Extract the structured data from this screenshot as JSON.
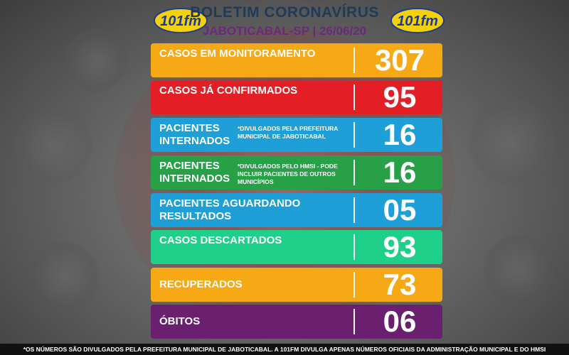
{
  "header": {
    "title": "BOLETIM CORONAVÍRUS",
    "subtitle": "JABOTICABAL-SP | 26/06/20",
    "logo_icon": "101fm-logo-icon"
  },
  "rows": [
    {
      "label": "CASOS EM MONITORAMENTO",
      "note": "",
      "value": "307",
      "color": "#f6a914"
    },
    {
      "label": "CASOS JÁ CONFIRMADOS",
      "note": "",
      "value": "95",
      "color": "#e31e24"
    },
    {
      "label": "PACIENTES INTERNADOS",
      "note": "*DIVULGADOS PELA PREFEITURA MUNICIPAL DE JABOTICABAL",
      "value": "16",
      "color": "#1e9fd8"
    },
    {
      "label": "PACIENTES INTERNADOS",
      "note": "*DIVULGADOS PELO HMSI - PODE INCLUIR PACIENTES DE OUTROS MUNICÍPIOS",
      "value": "16",
      "color": "#27a047"
    },
    {
      "label": "PACIENTES AGUARDANDO RESULTADOS",
      "note": "",
      "value": "05",
      "color": "#1e9fd8"
    },
    {
      "label": "CASOS DESCARTADOS",
      "note": "",
      "value": "93",
      "color": "#1fd08a"
    },
    {
      "label": "RECUPERADOS",
      "note": "",
      "value": "73",
      "color": "#f6a914"
    },
    {
      "label": "ÓBITOS",
      "note": "",
      "value": "06",
      "color": "#6b1f6f"
    }
  ],
  "footer": {
    "text": "*OS NÚMEROS SÃO DIVULGADOS PELA PREFEITURA MUNICIPAL DE JABOTICABAL. A 101FM DIVULGA APENAS NÚMEROS OFICIAIS DA ADMINISTRAÇÃO MUNICIPAL E DO HMSI"
  }
}
